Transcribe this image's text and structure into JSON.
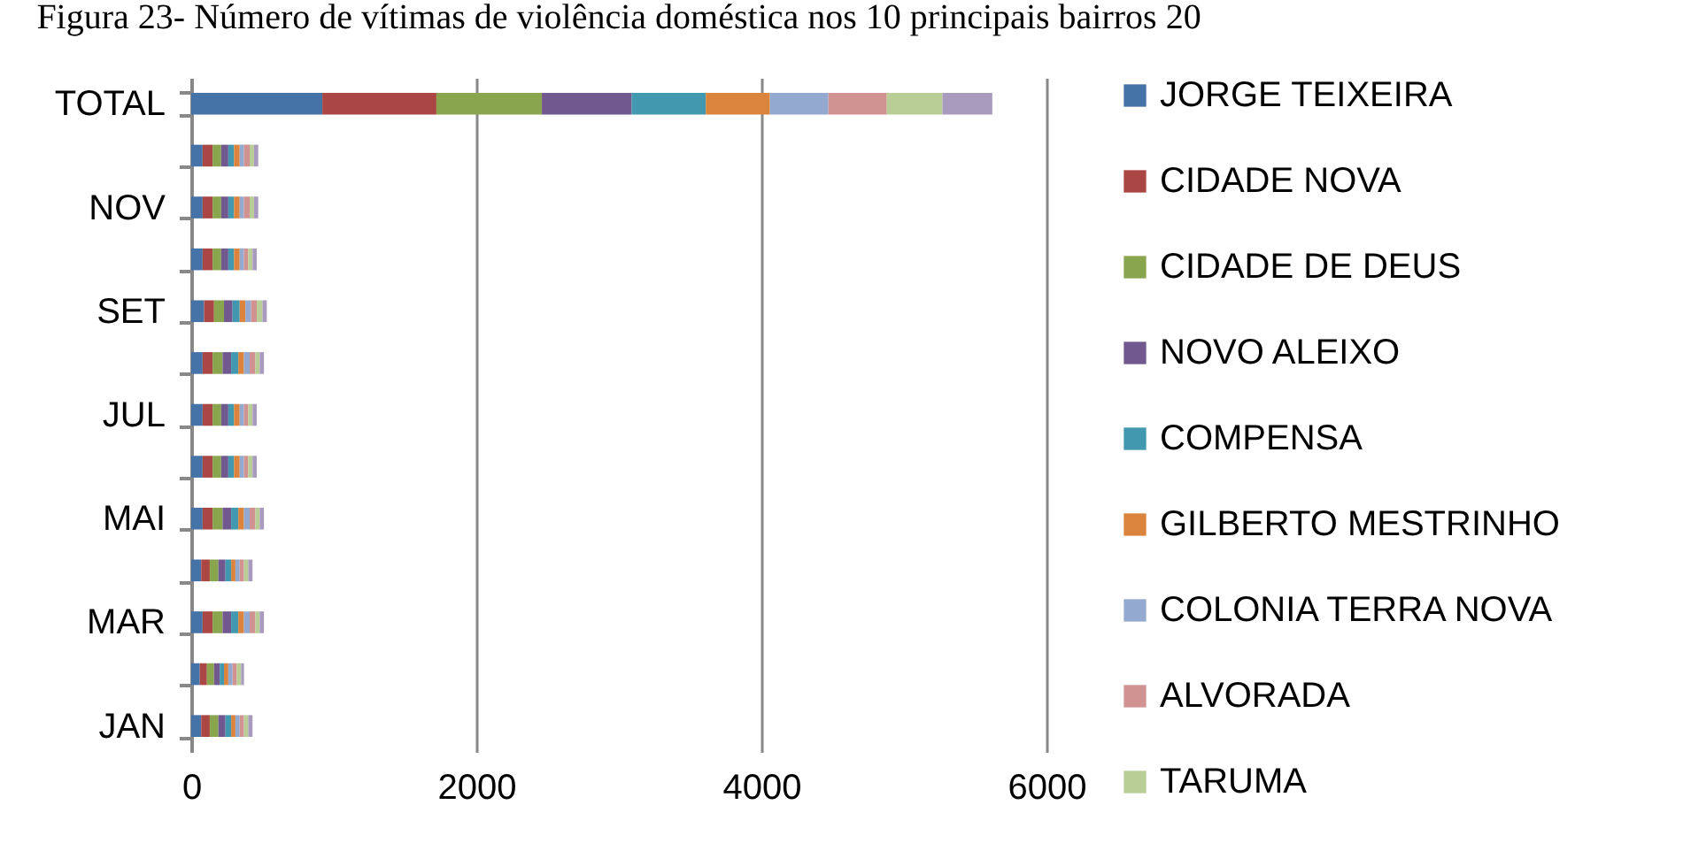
{
  "chart_data": {
    "type": "bar",
    "orientation": "horizontal",
    "stacked": true,
    "title": "Figura 23- Número de vítimas de violência doméstica nos 10 principais bairros 20",
    "categories": [
      "TOTAL",
      null,
      "NOV",
      null,
      "SET",
      null,
      "JUL",
      null,
      "MAI",
      null,
      "MAR",
      null,
      "JAN"
    ],
    "xlim": [
      0,
      6000
    ],
    "xticks": [
      0,
      2000,
      4000,
      6000
    ],
    "grid": "x",
    "legend": "right",
    "series": [
      {
        "name": "JORGE TEIXEIRA",
        "color": "#4572a7",
        "values": [
          920,
          80,
          80,
          80,
          90,
          80,
          80,
          80,
          80,
          70,
          80,
          60,
          70
        ]
      },
      {
        "name": "CIDADE NOVA",
        "color": "#aa4643",
        "values": [
          800,
          70,
          70,
          70,
          70,
          70,
          70,
          70,
          70,
          60,
          70,
          50,
          60
        ]
      },
      {
        "name": "CIDADE DE DEUS",
        "color": "#89a54e",
        "values": [
          740,
          60,
          60,
          60,
          70,
          70,
          60,
          60,
          70,
          60,
          70,
          50,
          60
        ]
      },
      {
        "name": "NOVO ALEIXO",
        "color": "#71588f",
        "values": [
          630,
          50,
          50,
          50,
          60,
          60,
          50,
          50,
          60,
          50,
          60,
          40,
          50
        ]
      },
      {
        "name": "COMPENSA",
        "color": "#4198af",
        "values": [
          520,
          40,
          40,
          40,
          50,
          50,
          40,
          40,
          50,
          40,
          50,
          30,
          40
        ]
      },
      {
        "name": "GILBERTO MESTRINHO",
        "color": "#db843d",
        "values": [
          450,
          40,
          40,
          40,
          40,
          40,
          40,
          40,
          40,
          30,
          40,
          30,
          30
        ]
      },
      {
        "name": "COLONIA TERRA NOVA",
        "color": "#93a9cf",
        "values": [
          410,
          30,
          30,
          30,
          40,
          40,
          30,
          30,
          40,
          30,
          40,
          30,
          30
        ]
      },
      {
        "name": "ALVORADA",
        "color": "#d19392",
        "values": [
          410,
          40,
          40,
          30,
          40,
          40,
          30,
          30,
          40,
          30,
          40,
          30,
          30
        ]
      },
      {
        "name": "TARUMA",
        "color": "#b9cd96",
        "values": [
          390,
          30,
          30,
          30,
          40,
          30,
          30,
          30,
          30,
          30,
          30,
          30,
          30
        ]
      },
      {
        "color": "#a99bbd",
        "values": [
          350,
          30,
          30,
          30,
          30,
          30,
          30,
          30,
          30,
          30,
          30,
          20,
          30
        ]
      }
    ]
  }
}
